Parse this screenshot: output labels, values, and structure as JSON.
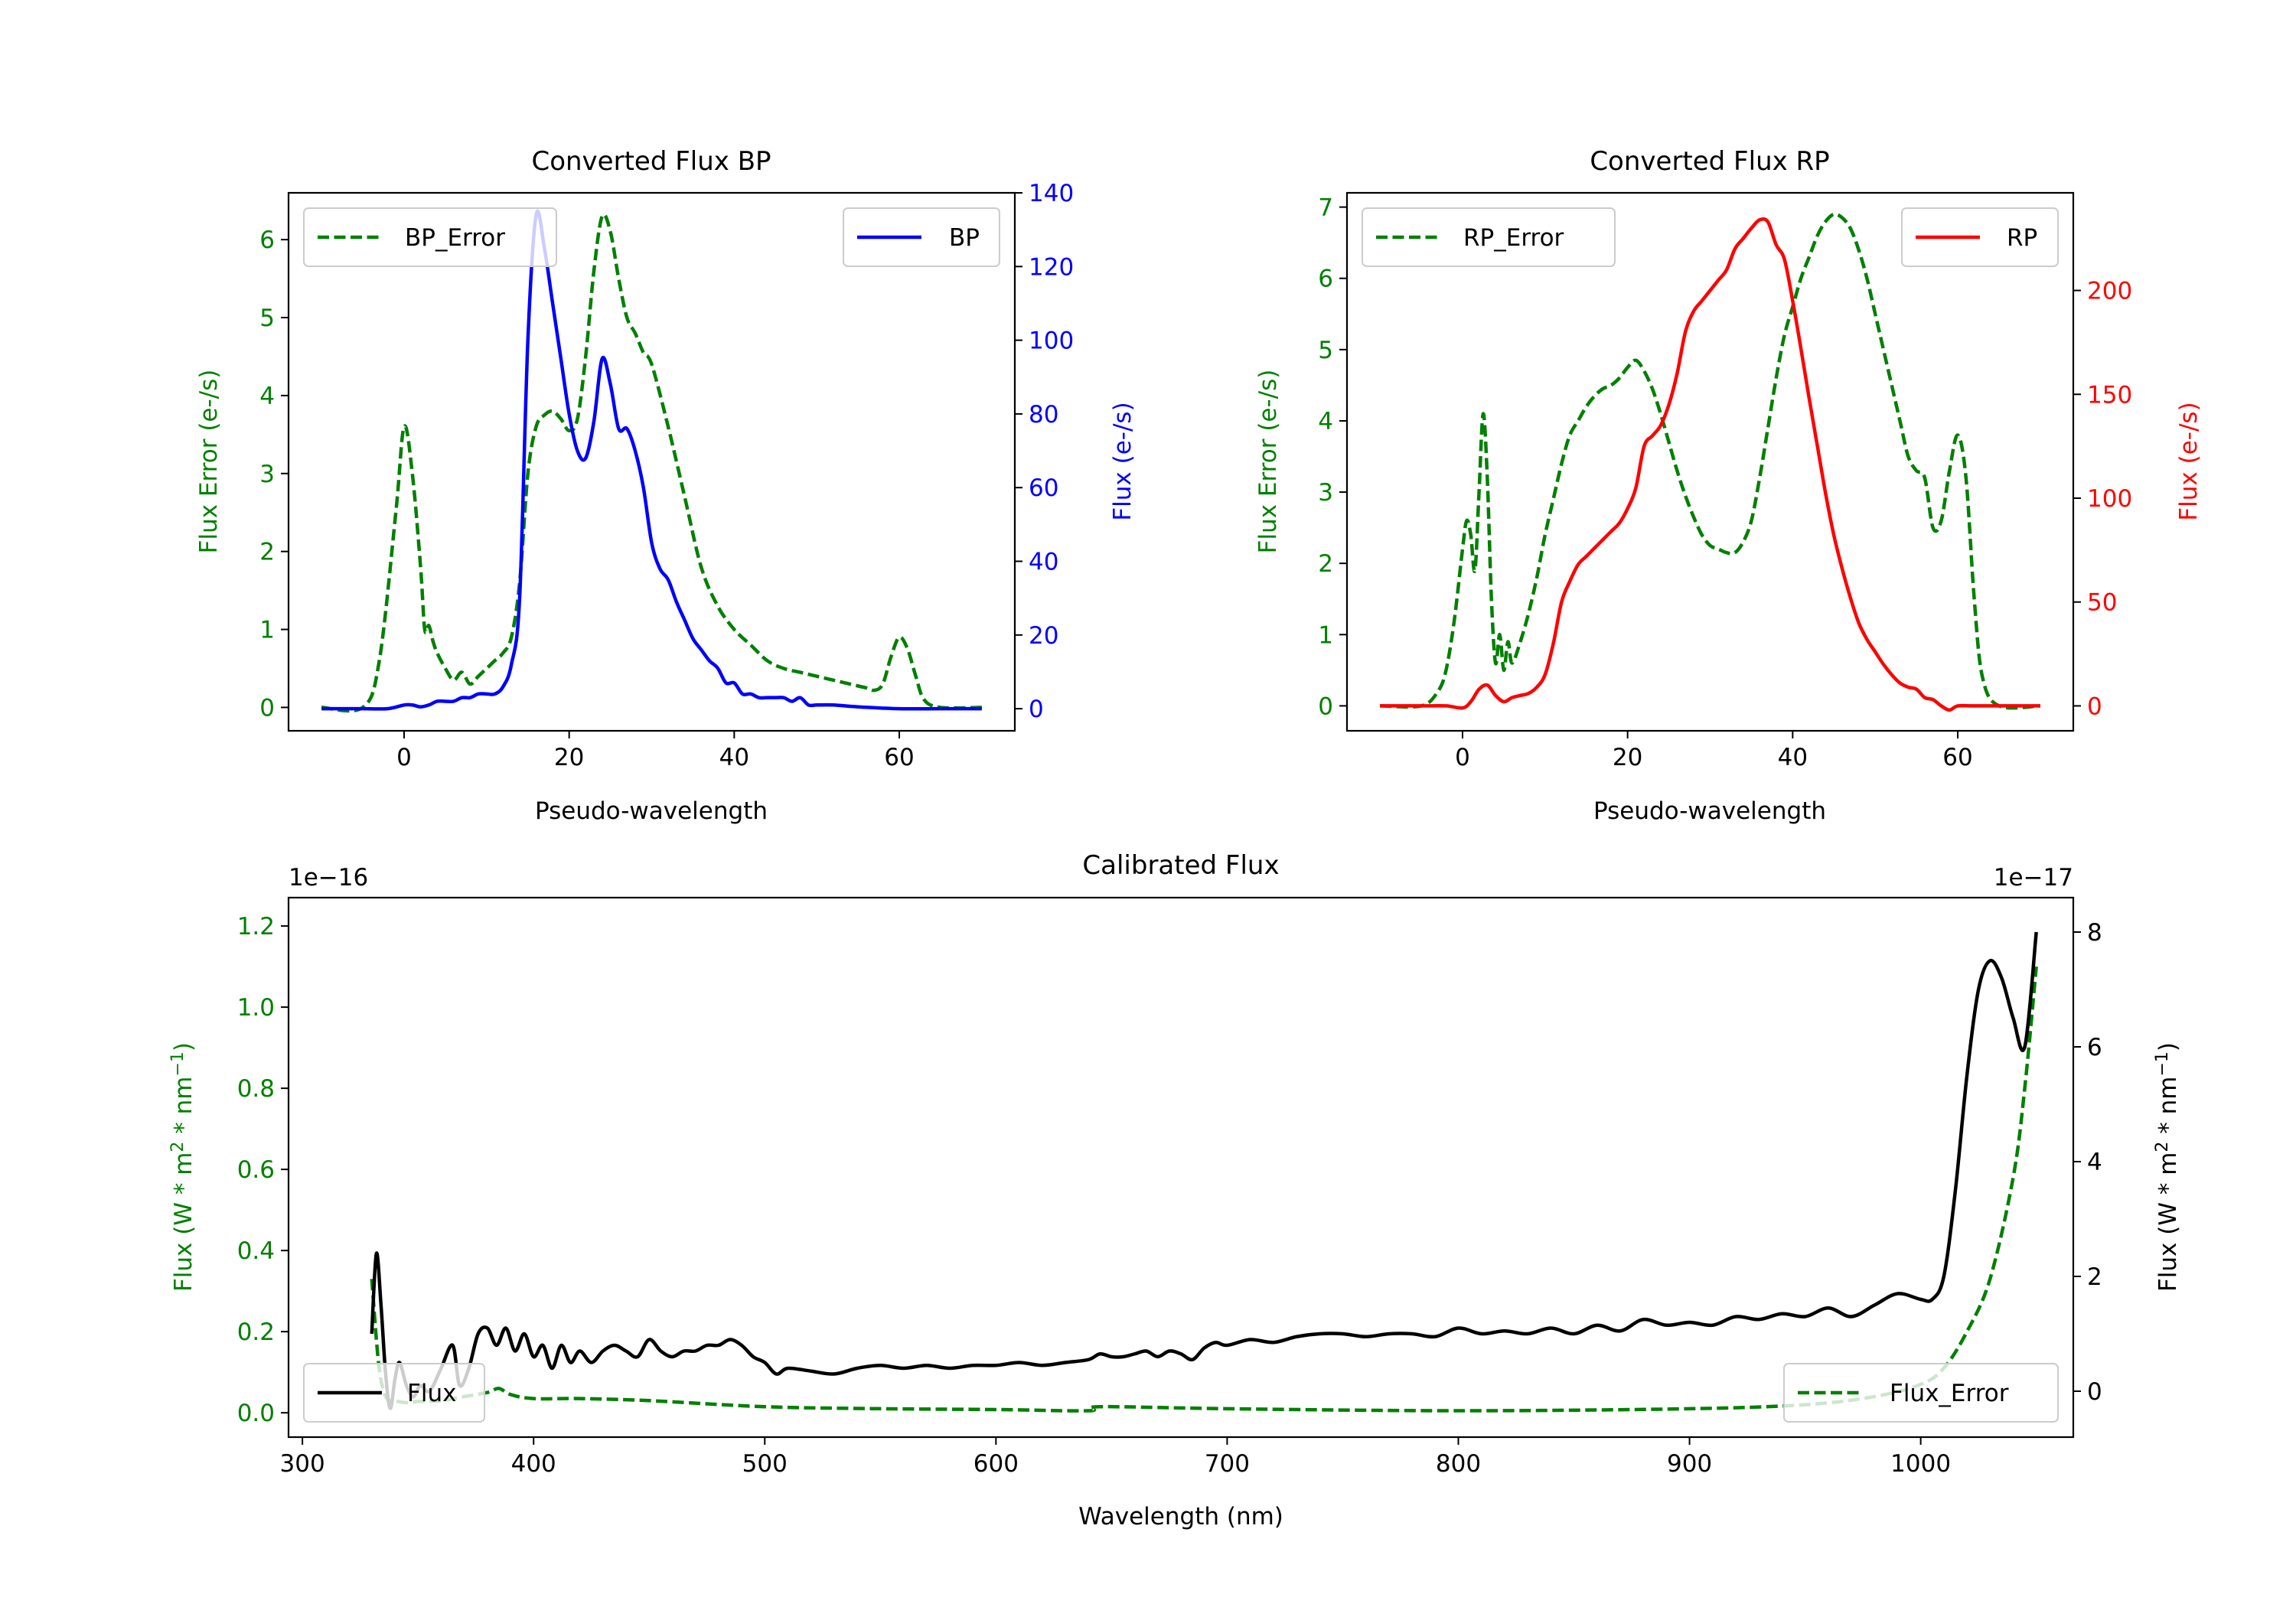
{
  "chart_data": [
    {
      "id": "bp",
      "type": "line",
      "title": "Converted Flux BP",
      "xlabel": "Pseudo-wavelength",
      "xlim": [
        -14,
        74
      ],
      "xticks": [
        0,
        20,
        40,
        60
      ],
      "left_axis": {
        "label": "Flux Error (e-/s)",
        "color": "#008000",
        "lim": [
          -0.3,
          6.6
        ],
        "ticks": [
          0,
          1,
          2,
          3,
          4,
          5,
          6
        ]
      },
      "right_axis": {
        "label": "Flux (e-/s)",
        "color": "#0000ff",
        "lim": [
          -6,
          140
        ],
        "ticks": [
          0,
          20,
          40,
          60,
          80,
          100,
          120,
          140
        ]
      },
      "series": [
        {
          "name": "BP_Error",
          "axis": "left",
          "style": "dashed",
          "color": "#008000",
          "x": [
            -10,
            -5,
            -3,
            -1,
            0,
            1,
            2,
            2.5,
            3,
            3.5,
            4,
            5,
            6,
            7,
            8,
            9,
            10,
            11,
            12,
            13,
            14,
            15,
            16,
            17,
            18,
            19,
            20,
            21,
            22,
            23,
            24,
            25,
            26,
            27,
            28,
            29,
            30,
            32,
            34,
            36,
            38,
            40,
            42,
            44,
            46,
            48,
            50,
            52,
            54,
            56,
            57,
            58,
            59,
            60,
            61,
            62,
            63,
            65,
            70
          ],
          "y": [
            0,
            0,
            0.6,
            2.5,
            3.6,
            3.0,
            1.8,
            1.0,
            1.05,
            0.85,
            0.7,
            0.5,
            0.35,
            0.45,
            0.3,
            0.4,
            0.5,
            0.6,
            0.7,
            0.9,
            1.6,
            3.0,
            3.6,
            3.75,
            3.8,
            3.7,
            3.55,
            3.7,
            4.5,
            5.6,
            6.3,
            6.1,
            5.5,
            5.0,
            4.8,
            4.55,
            4.4,
            3.6,
            2.7,
            1.8,
            1.3,
            1.0,
            0.8,
            0.6,
            0.5,
            0.45,
            0.4,
            0.35,
            0.3,
            0.25,
            0.22,
            0.3,
            0.65,
            0.9,
            0.75,
            0.4,
            0.1,
            0,
            0
          ]
        },
        {
          "name": "BP",
          "axis": "right",
          "style": "solid",
          "color": "#0000ff",
          "x": [
            -10,
            -5,
            -2,
            0,
            1,
            2,
            3,
            4,
            5,
            6,
            7,
            8,
            9,
            10,
            11,
            12,
            13,
            14,
            15,
            16,
            17,
            18,
            19,
            20,
            21,
            22,
            23,
            24,
            25,
            26,
            27,
            28,
            29,
            30,
            31,
            32,
            33,
            34,
            35,
            36,
            37,
            38,
            39,
            40,
            41,
            42,
            43,
            44,
            45,
            46,
            47,
            48,
            49,
            50,
            52,
            55,
            60,
            65,
            70
          ],
          "y": [
            0,
            0,
            0,
            1,
            1,
            0.5,
            1,
            2,
            2,
            2,
            3,
            3,
            4,
            4,
            4,
            6,
            12,
            30,
            100,
            134,
            125,
            110,
            95,
            80,
            70,
            68,
            78,
            95,
            88,
            76,
            76,
            70,
            60,
            45,
            38,
            35,
            29,
            24,
            19,
            16,
            13,
            11,
            7,
            7,
            4,
            4,
            3,
            3,
            3,
            3,
            2,
            3,
            1,
            1,
            1,
            0.5,
            0,
            0,
            0
          ]
        }
      ],
      "legends": [
        {
          "label": "BP_Error",
          "position": "upper-left"
        },
        {
          "label": "BP",
          "position": "upper-right"
        }
      ]
    },
    {
      "id": "rp",
      "type": "line",
      "title": "Converted Flux RP",
      "xlabel": "Pseudo-wavelength",
      "xlim": [
        -14,
        74
      ],
      "xticks": [
        0,
        20,
        40,
        60
      ],
      "left_axis": {
        "label": "Flux Error (e-/s)",
        "color": "#008000",
        "lim": [
          -0.35,
          7.2
        ],
        "ticks": [
          0,
          1,
          2,
          3,
          4,
          5,
          6,
          7
        ]
      },
      "right_axis": {
        "label": "Flux (e-/s)",
        "color": "#ff0000",
        "lim": [
          -12,
          247
        ],
        "ticks": [
          0,
          50,
          100,
          150,
          200
        ]
      },
      "series": [
        {
          "name": "RP_Error",
          "axis": "left",
          "style": "dashed",
          "color": "#008000",
          "x": [
            -10,
            -5,
            -3,
            -2,
            -1,
            0,
            0.5,
            1,
            1.5,
            2,
            2.5,
            3,
            3.5,
            4,
            4.5,
            5,
            5.5,
            6,
            7,
            8,
            9,
            10,
            11,
            12,
            13,
            14,
            15,
            16,
            17,
            18,
            19,
            20,
            21,
            22,
            23,
            24,
            25,
            26,
            27,
            28,
            29,
            30,
            31,
            32,
            33,
            34,
            35,
            36,
            37,
            38,
            39,
            40,
            41,
            42,
            43,
            44,
            45,
            46,
            47,
            48,
            49,
            50,
            51,
            52,
            53,
            54,
            55,
            56,
            57,
            58,
            59,
            60,
            61,
            62,
            63,
            65,
            70
          ],
          "y": [
            0,
            0,
            0.2,
            0.5,
            1.2,
            2.2,
            2.6,
            2.4,
            1.9,
            3.0,
            4.1,
            3.2,
            1.5,
            0.6,
            1.0,
            0.5,
            0.9,
            0.6,
            0.9,
            1.3,
            1.8,
            2.4,
            2.9,
            3.4,
            3.8,
            4.0,
            4.2,
            4.35,
            4.45,
            4.5,
            4.6,
            4.75,
            4.85,
            4.7,
            4.45,
            4.1,
            3.7,
            3.3,
            2.95,
            2.65,
            2.4,
            2.25,
            2.2,
            2.15,
            2.15,
            2.3,
            2.6,
            3.2,
            3.9,
            4.6,
            5.2,
            5.6,
            6.0,
            6.3,
            6.6,
            6.8,
            6.9,
            6.85,
            6.7,
            6.4,
            6.0,
            5.5,
            5.0,
            4.5,
            4.0,
            3.5,
            3.3,
            3.2,
            2.5,
            2.6,
            3.3,
            3.8,
            3.2,
            1.5,
            0.4,
            0,
            0
          ]
        },
        {
          "name": "RP",
          "axis": "right",
          "style": "solid",
          "color": "#ff0000",
          "x": [
            -10,
            -5,
            -2,
            0,
            1,
            2,
            3,
            4,
            5,
            6,
            7,
            8,
            9,
            10,
            11,
            12,
            13,
            14,
            15,
            16,
            17,
            18,
            19,
            20,
            21,
            22,
            23,
            24,
            25,
            26,
            27,
            28,
            29,
            30,
            31,
            32,
            33,
            34,
            35,
            36,
            37,
            38,
            39,
            40,
            41,
            42,
            43,
            44,
            45,
            46,
            47,
            48,
            49,
            50,
            51,
            52,
            53,
            54,
            55,
            56,
            57,
            58,
            59,
            60,
            62,
            65,
            70
          ],
          "y": [
            0,
            0,
            0,
            -1,
            2,
            8,
            10,
            5,
            2,
            4,
            5,
            6,
            9,
            15,
            30,
            50,
            60,
            68,
            72,
            76,
            80,
            84,
            88,
            95,
            105,
            125,
            130,
            135,
            145,
            160,
            180,
            190,
            195,
            200,
            205,
            210,
            220,
            225,
            230,
            234,
            233,
            222,
            215,
            195,
            172,
            148,
            125,
            102,
            82,
            66,
            52,
            40,
            32,
            26,
            20,
            15,
            11,
            9,
            8,
            4,
            3,
            0,
            -2,
            0,
            0,
            0,
            0
          ]
        }
      ],
      "legends": [
        {
          "label": "RP_Error",
          "position": "upper-left"
        },
        {
          "label": "RP",
          "position": "upper-right"
        }
      ]
    },
    {
      "id": "cal",
      "type": "line",
      "title": "Calibrated Flux",
      "xlabel": "Wavelength (nm)",
      "xlim": [
        294,
        1066
      ],
      "xticks": [
        300,
        400,
        500,
        600,
        700,
        800,
        900,
        1000
      ],
      "left_axis": {
        "label": "Flux (W * m",
        "label_sup1": "2",
        "label_mid": " * nm",
        "label_sup2": "−1",
        "label_end": ")",
        "color": "#008000",
        "lim": [
          -0.06,
          1.27
        ],
        "ticks": [
          0.0,
          0.2,
          0.4,
          0.6,
          0.8,
          1.0,
          1.2
        ],
        "tick_labels": [
          "0.0",
          "0.2",
          "0.4",
          "0.6",
          "0.8",
          "1.0",
          "1.2"
        ],
        "offset_text": "1e−16"
      },
      "right_axis": {
        "label": "Flux (W * m",
        "label_sup1": "2",
        "label_mid": " * nm",
        "label_sup2": "−1",
        "label_end": ")",
        "color": "#000000",
        "lim": [
          -0.8,
          8.6
        ],
        "ticks": [
          0,
          2,
          4,
          6,
          8
        ],
        "tick_labels": [
          "0",
          "2",
          "4",
          "6",
          "8"
        ],
        "offset_text": "1e−17"
      },
      "series": [
        {
          "name": "Flux_Error",
          "axis": "left",
          "style": "dashed",
          "color": "#008000",
          "x": [
            330,
            333,
            336,
            340,
            345,
            350,
            360,
            370,
            380,
            385,
            390,
            400,
            420,
            450,
            500,
            550,
            600,
            640,
            645,
            700,
            800,
            900,
            950,
            980,
            1000,
            1010,
            1020,
            1030,
            1040,
            1045,
            1050
          ],
          "y": [
            0.33,
            0.12,
            0.04,
            0.03,
            0.025,
            0.028,
            0.03,
            0.04,
            0.05,
            0.06,
            0.045,
            0.035,
            0.035,
            0.03,
            0.015,
            0.01,
            0.008,
            0.005,
            0.015,
            0.01,
            0.005,
            0.01,
            0.02,
            0.04,
            0.07,
            0.11,
            0.2,
            0.33,
            0.58,
            0.8,
            1.1
          ]
        },
        {
          "name": "Flux",
          "axis": "right",
          "style": "solid",
          "color": "#000000",
          "x": [
            330,
            332,
            334,
            336,
            338,
            340,
            342,
            345,
            348,
            351,
            355,
            360,
            365,
            368,
            372,
            376,
            380,
            384,
            388,
            392,
            396,
            400,
            404,
            408,
            412,
            416,
            420,
            425,
            430,
            435,
            440,
            445,
            450,
            455,
            460,
            465,
            470,
            475,
            480,
            485,
            490,
            495,
            500,
            505,
            510,
            520,
            530,
            540,
            550,
            560,
            570,
            580,
            590,
            600,
            610,
            620,
            630,
            640,
            645,
            650,
            655,
            660,
            665,
            670,
            675,
            680,
            685,
            690,
            695,
            700,
            710,
            720,
            730,
            740,
            750,
            760,
            770,
            780,
            790,
            800,
            810,
            820,
            830,
            840,
            850,
            860,
            870,
            880,
            890,
            900,
            910,
            920,
            930,
            940,
            950,
            960,
            970,
            980,
            990,
            1000,
            1005,
            1010,
            1015,
            1020,
            1025,
            1030,
            1035,
            1040,
            1045,
            1050
          ],
          "y": [
            1,
            2.4,
            1.5,
            0.3,
            -0.3,
            0.2,
            0.5,
            0.1,
            -0.1,
            0.1,
            0,
            0.4,
            0.8,
            0.1,
            0.4,
            1.0,
            1.1,
            0.8,
            1.1,
            0.7,
            1.0,
            0.6,
            0.8,
            0.4,
            0.8,
            0.5,
            0.7,
            0.5,
            0.7,
            0.8,
            0.7,
            0.6,
            0.9,
            0.7,
            0.6,
            0.7,
            0.7,
            0.8,
            0.8,
            0.9,
            0.8,
            0.6,
            0.5,
            0.3,
            0.4,
            0.35,
            0.3,
            0.4,
            0.45,
            0.4,
            0.45,
            0.4,
            0.45,
            0.45,
            0.5,
            0.45,
            0.5,
            0.55,
            0.65,
            0.6,
            0.6,
            0.65,
            0.7,
            0.6,
            0.7,
            0.65,
            0.55,
            0.75,
            0.85,
            0.8,
            0.9,
            0.85,
            0.95,
            1.0,
            1.0,
            0.95,
            1.0,
            1.0,
            0.95,
            1.1,
            1.0,
            1.05,
            1.0,
            1.1,
            1.0,
            1.15,
            1.05,
            1.25,
            1.15,
            1.2,
            1.15,
            1.3,
            1.25,
            1.35,
            1.3,
            1.45,
            1.3,
            1.5,
            1.7,
            1.6,
            1.6,
            2.0,
            3.5,
            5.5,
            7.0,
            7.5,
            7.2,
            6.5,
            6.0,
            8.0
          ]
        }
      ],
      "legends": [
        {
          "label": "Flux",
          "position": "lower-left"
        },
        {
          "label": "Flux_Error",
          "position": "lower-right"
        }
      ]
    }
  ]
}
